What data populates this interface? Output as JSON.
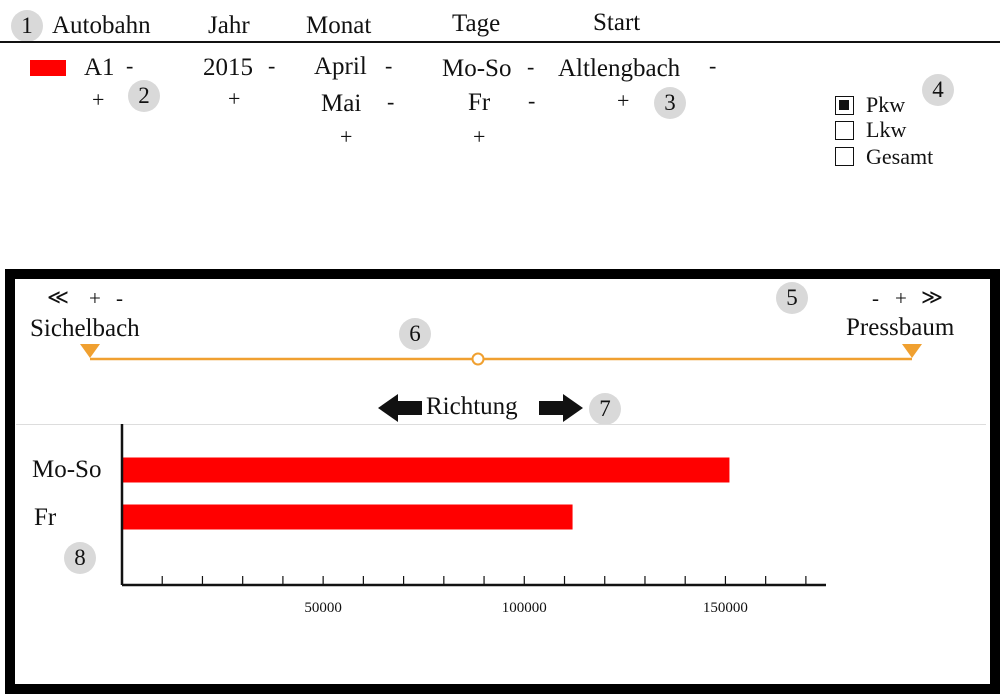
{
  "badges": [
    "1",
    "2",
    "3",
    "4",
    "5",
    "6",
    "7",
    "8"
  ],
  "filters": {
    "autobahn": {
      "header": "Autobahn",
      "values": [
        "A1"
      ],
      "color": "#ff0000"
    },
    "jahr": {
      "header": "Jahr",
      "values": [
        "2015"
      ]
    },
    "monat": {
      "header": "Monat",
      "values": [
        "April",
        "Mai"
      ]
    },
    "tage": {
      "header": "Tage",
      "values": [
        "Mo-So",
        "Fr"
      ]
    },
    "start": {
      "header": "Start",
      "values": [
        "Altlengbach"
      ]
    },
    "remove_label": "-",
    "add_label": "+"
  },
  "vehicle": [
    {
      "label": "Pkw",
      "checked": true
    },
    {
      "label": "Lkw",
      "checked": false
    },
    {
      "label": "Gesamt",
      "checked": false
    }
  ],
  "route": {
    "left_nav": {
      "far": "≪",
      "plus": "+",
      "minus": "-"
    },
    "right_nav": {
      "minus": "-",
      "plus": "+",
      "far": "≫"
    },
    "left_place": "Sichelbach",
    "right_place": "Pressbaum",
    "direction_label": "Richtung",
    "line_color": "#f0a030"
  },
  "chart_data": {
    "type": "bar",
    "orientation": "horizontal",
    "categories": [
      "Mo-So",
      "Fr"
    ],
    "series": [
      {
        "values": [
          151000,
          112000
        ],
        "color": "#ff0000"
      }
    ],
    "xlim": [
      0,
      175000
    ],
    "xticks": [
      50000,
      100000,
      150000
    ],
    "minor_tick_step": 10000,
    "title": "",
    "xlabel": "",
    "ylabel": ""
  }
}
